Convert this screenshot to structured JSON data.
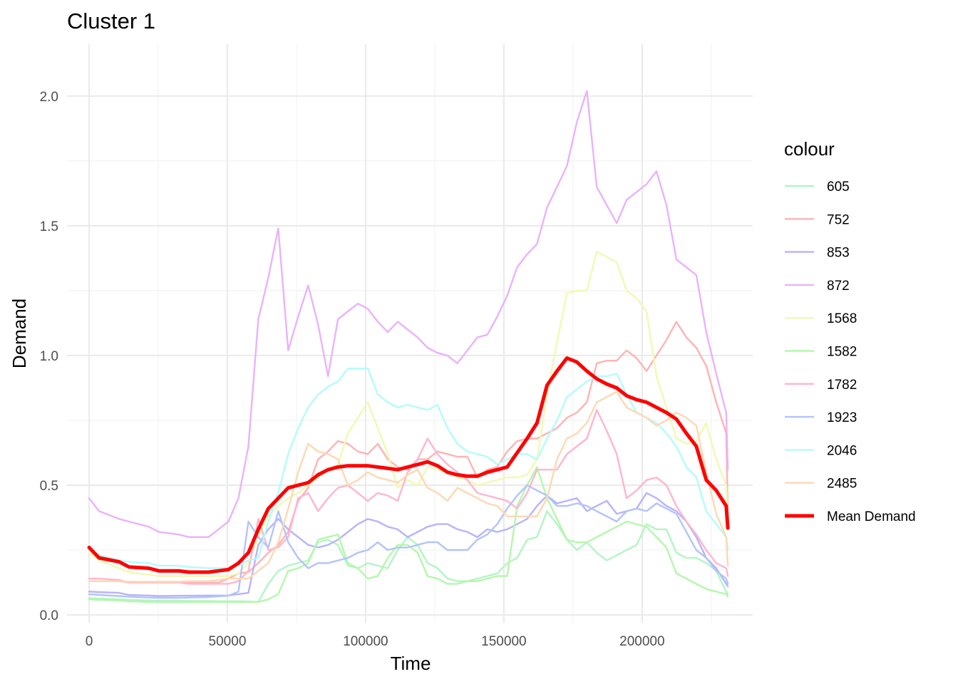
{
  "chart_data": {
    "type": "line",
    "title": "Cluster 1",
    "xlabel": "Time",
    "ylabel": "Demand",
    "xlim": [
      -8000,
      240000
    ],
    "ylim": [
      -0.03,
      2.2
    ],
    "xticks": [
      0,
      50000,
      100000,
      150000,
      200000
    ],
    "xtick_labels": [
      "0",
      "50000",
      "100000",
      "150000",
      "200000"
    ],
    "yticks": [
      0.0,
      0.5,
      1.0,
      1.5,
      2.0
    ],
    "ytick_labels": [
      "0.0",
      "0.5",
      "1.0",
      "1.5",
      "2.0"
    ],
    "grid": true,
    "legend_title": "colour",
    "legend_position": "right",
    "x": [
      0,
      3600,
      10800,
      14400,
      21600,
      25200,
      32400,
      36000,
      43200,
      46800,
      50400,
      54000,
      57600,
      61200,
      64800,
      68400,
      72000,
      75600,
      79200,
      82800,
      86400,
      90000,
      93600,
      97200,
      100800,
      104400,
      108000,
      111600,
      115200,
      118800,
      122400,
      126000,
      129600,
      133200,
      136800,
      140400,
      144000,
      147600,
      151200,
      154800,
      158400,
      162000,
      165600,
      169200,
      172800,
      176400,
      180000,
      183600,
      187200,
      190800,
      194400,
      198000,
      201600,
      205200,
      208800,
      212400,
      216000,
      219600,
      223200,
      226800,
      230400,
      231000
    ],
    "series": [
      {
        "name": "605",
        "color": "#b3f5c5",
        "width": 2.4,
        "values": [
          0.065,
          0.063,
          0.061,
          0.058,
          0.056,
          0.055,
          0.055,
          0.054,
          0.054,
          0.053,
          0.053,
          0.053,
          0.052,
          0.05,
          0.12,
          0.17,
          0.19,
          0.2,
          0.21,
          0.28,
          0.29,
          0.27,
          0.19,
          0.18,
          0.2,
          0.19,
          0.18,
          0.25,
          0.3,
          0.27,
          0.2,
          0.18,
          0.14,
          0.13,
          0.13,
          0.14,
          0.15,
          0.16,
          0.2,
          0.22,
          0.29,
          0.3,
          0.4,
          0.35,
          0.29,
          0.25,
          0.28,
          0.24,
          0.21,
          0.23,
          0.25,
          0.27,
          0.35,
          0.33,
          0.33,
          0.24,
          0.22,
          0.22,
          0.2,
          0.17,
          0.09,
          0.08
        ]
      },
      {
        "name": "752",
        "color": "#ffb3b3",
        "width": 2.4,
        "values": [
          0.13,
          0.13,
          0.13,
          0.125,
          0.125,
          0.125,
          0.125,
          0.125,
          0.125,
          0.125,
          0.14,
          0.16,
          0.165,
          0.2,
          0.24,
          0.27,
          0.32,
          0.44,
          0.49,
          0.6,
          0.63,
          0.67,
          0.66,
          0.63,
          0.62,
          0.66,
          0.6,
          0.57,
          0.56,
          0.6,
          0.6,
          0.63,
          0.62,
          0.61,
          0.61,
          0.53,
          0.56,
          0.57,
          0.63,
          0.67,
          0.68,
          0.68,
          0.7,
          0.72,
          0.76,
          0.78,
          0.82,
          0.97,
          0.98,
          0.98,
          1.02,
          0.99,
          0.94,
          1.0,
          1.06,
          1.13,
          1.07,
          1.03,
          0.96,
          0.82,
          0.7,
          0.38
        ]
      },
      {
        "name": "853",
        "color": "#b8b3fb",
        "width": 2.4,
        "values": [
          0.09,
          0.088,
          0.085,
          0.077,
          0.075,
          0.073,
          0.074,
          0.074,
          0.075,
          0.075,
          0.075,
          0.08,
          0.085,
          0.27,
          0.33,
          0.37,
          0.33,
          0.3,
          0.27,
          0.26,
          0.27,
          0.29,
          0.32,
          0.35,
          0.37,
          0.36,
          0.34,
          0.33,
          0.3,
          0.32,
          0.34,
          0.35,
          0.35,
          0.33,
          0.32,
          0.3,
          0.33,
          0.32,
          0.33,
          0.35,
          0.37,
          0.42,
          0.46,
          0.43,
          0.44,
          0.45,
          0.4,
          0.42,
          0.44,
          0.39,
          0.4,
          0.41,
          0.47,
          0.45,
          0.42,
          0.4,
          0.36,
          0.3,
          0.22,
          0.18,
          0.12,
          0.11
        ]
      },
      {
        "name": "872",
        "color": "#e9b3f9",
        "width": 2.4,
        "values": [
          0.45,
          0.4,
          0.37,
          0.36,
          0.34,
          0.32,
          0.31,
          0.3,
          0.3,
          0.33,
          0.36,
          0.45,
          0.65,
          1.14,
          1.3,
          1.49,
          1.02,
          1.15,
          1.27,
          1.12,
          0.92,
          1.14,
          1.17,
          1.2,
          1.18,
          1.13,
          1.09,
          1.13,
          1.1,
          1.07,
          1.03,
          1.01,
          1.0,
          0.97,
          1.02,
          1.07,
          1.08,
          1.15,
          1.23,
          1.34,
          1.39,
          1.43,
          1.57,
          1.65,
          1.73,
          1.9,
          2.02,
          1.65,
          1.58,
          1.51,
          1.6,
          1.63,
          1.66,
          1.71,
          1.58,
          1.37,
          1.34,
          1.31,
          1.09,
          0.93,
          0.78,
          0.56
        ]
      },
      {
        "name": "1568",
        "color": "#f1f9b3",
        "width": 2.4,
        "values": [
          0.24,
          0.21,
          0.18,
          0.165,
          0.155,
          0.15,
          0.15,
          0.15,
          0.15,
          0.15,
          0.15,
          0.16,
          0.2,
          0.3,
          0.38,
          0.42,
          0.45,
          0.47,
          0.5,
          0.53,
          0.56,
          0.58,
          0.7,
          0.76,
          0.82,
          0.72,
          0.62,
          0.49,
          0.52,
          0.5,
          0.57,
          0.56,
          0.55,
          0.53,
          0.52,
          0.5,
          0.51,
          0.52,
          0.53,
          0.53,
          0.54,
          0.6,
          0.85,
          1.05,
          1.24,
          1.25,
          1.25,
          1.4,
          1.38,
          1.36,
          1.25,
          1.22,
          1.17,
          0.92,
          0.8,
          0.68,
          0.66,
          0.67,
          0.74,
          0.6,
          0.5,
          0.38
        ]
      },
      {
        "name": "1582",
        "color": "#b5f7ab",
        "width": 2.4,
        "values": [
          0.06,
          0.058,
          0.056,
          0.052,
          0.05,
          0.05,
          0.05,
          0.05,
          0.05,
          0.05,
          0.05,
          0.05,
          0.05,
          0.05,
          0.06,
          0.08,
          0.17,
          0.18,
          0.2,
          0.29,
          0.3,
          0.31,
          0.2,
          0.18,
          0.14,
          0.15,
          0.22,
          0.27,
          0.27,
          0.24,
          0.15,
          0.14,
          0.12,
          0.12,
          0.13,
          0.13,
          0.14,
          0.15,
          0.15,
          0.42,
          0.5,
          0.57,
          0.45,
          0.37,
          0.29,
          0.28,
          0.28,
          0.3,
          0.32,
          0.34,
          0.36,
          0.35,
          0.34,
          0.3,
          0.26,
          0.16,
          0.14,
          0.12,
          0.1,
          0.09,
          0.08,
          0.07
        ]
      },
      {
        "name": "1782",
        "color": "#ffb5cf",
        "width": 2.4,
        "values": [
          0.14,
          0.14,
          0.135,
          0.125,
          0.125,
          0.125,
          0.125,
          0.12,
          0.12,
          0.12,
          0.12,
          0.13,
          0.17,
          0.37,
          0.25,
          0.26,
          0.3,
          0.45,
          0.47,
          0.4,
          0.45,
          0.49,
          0.5,
          0.47,
          0.44,
          0.47,
          0.46,
          0.44,
          0.55,
          0.6,
          0.68,
          0.62,
          0.58,
          0.55,
          0.52,
          0.47,
          0.46,
          0.45,
          0.44,
          0.41,
          0.47,
          0.56,
          0.56,
          0.56,
          0.62,
          0.65,
          0.68,
          0.79,
          0.71,
          0.62,
          0.45,
          0.48,
          0.52,
          0.53,
          0.5,
          0.42,
          0.36,
          0.31,
          0.25,
          0.2,
          0.18,
          0.15
        ]
      },
      {
        "name": "1923",
        "color": "#b3c4f9",
        "width": 2.4,
        "values": [
          0.08,
          0.077,
          0.073,
          0.07,
          0.067,
          0.066,
          0.066,
          0.067,
          0.069,
          0.072,
          0.074,
          0.09,
          0.36,
          0.3,
          0.26,
          0.4,
          0.28,
          0.22,
          0.18,
          0.2,
          0.2,
          0.21,
          0.22,
          0.24,
          0.25,
          0.28,
          0.25,
          0.26,
          0.26,
          0.27,
          0.28,
          0.28,
          0.25,
          0.25,
          0.25,
          0.29,
          0.31,
          0.35,
          0.41,
          0.46,
          0.5,
          0.48,
          0.46,
          0.42,
          0.42,
          0.43,
          0.42,
          0.4,
          0.38,
          0.36,
          0.4,
          0.41,
          0.4,
          0.43,
          0.41,
          0.39,
          0.32,
          0.25,
          0.22,
          0.17,
          0.14,
          0.12
        ]
      },
      {
        "name": "2046",
        "color": "#b3fcfb",
        "width": 2.4,
        "values": [
          0.25,
          0.23,
          0.21,
          0.205,
          0.2,
          0.19,
          0.19,
          0.185,
          0.18,
          0.18,
          0.18,
          0.19,
          0.21,
          0.22,
          0.36,
          0.47,
          0.62,
          0.72,
          0.8,
          0.85,
          0.88,
          0.9,
          0.95,
          0.95,
          0.95,
          0.85,
          0.82,
          0.8,
          0.81,
          0.8,
          0.79,
          0.81,
          0.72,
          0.66,
          0.63,
          0.62,
          0.61,
          0.58,
          0.6,
          0.62,
          0.62,
          0.6,
          0.68,
          0.75,
          0.84,
          0.87,
          0.9,
          0.92,
          0.92,
          0.93,
          0.85,
          0.78,
          0.76,
          0.74,
          0.7,
          0.65,
          0.57,
          0.53,
          0.4,
          0.35,
          0.3,
          0.25
        ]
      },
      {
        "name": "2485",
        "color": "#fdd8b3",
        "width": 2.4,
        "values": [
          0.13,
          0.13,
          0.13,
          0.128,
          0.128,
          0.128,
          0.128,
          0.13,
          0.13,
          0.135,
          0.14,
          0.14,
          0.14,
          0.17,
          0.2,
          0.28,
          0.41,
          0.55,
          0.66,
          0.63,
          0.62,
          0.6,
          0.5,
          0.52,
          0.55,
          0.53,
          0.52,
          0.51,
          0.54,
          0.56,
          0.49,
          0.47,
          0.44,
          0.49,
          0.47,
          0.45,
          0.43,
          0.42,
          0.38,
          0.38,
          0.38,
          0.38,
          0.45,
          0.6,
          0.68,
          0.7,
          0.74,
          0.82,
          0.84,
          0.86,
          0.8,
          0.78,
          0.76,
          0.73,
          0.75,
          0.78,
          0.76,
          0.73,
          0.55,
          0.39,
          0.3,
          0.19
        ]
      },
      {
        "name": "Mean Demand",
        "color": "#ff0000",
        "width": 5,
        "values": [
          0.26,
          0.22,
          0.205,
          0.185,
          0.18,
          0.17,
          0.17,
          0.165,
          0.165,
          0.17,
          0.175,
          0.2,
          0.24,
          0.33,
          0.41,
          0.45,
          0.49,
          0.5,
          0.51,
          0.54,
          0.56,
          0.57,
          0.575,
          0.575,
          0.575,
          0.57,
          0.565,
          0.56,
          0.57,
          0.58,
          0.59,
          0.575,
          0.55,
          0.54,
          0.535,
          0.535,
          0.55,
          0.56,
          0.57,
          0.625,
          0.68,
          0.74,
          0.885,
          0.94,
          0.99,
          0.975,
          0.94,
          0.91,
          0.89,
          0.875,
          0.845,
          0.83,
          0.82,
          0.8,
          0.78,
          0.755,
          0.7,
          0.65,
          0.52,
          0.48,
          0.42,
          0.335
        ]
      }
    ]
  }
}
